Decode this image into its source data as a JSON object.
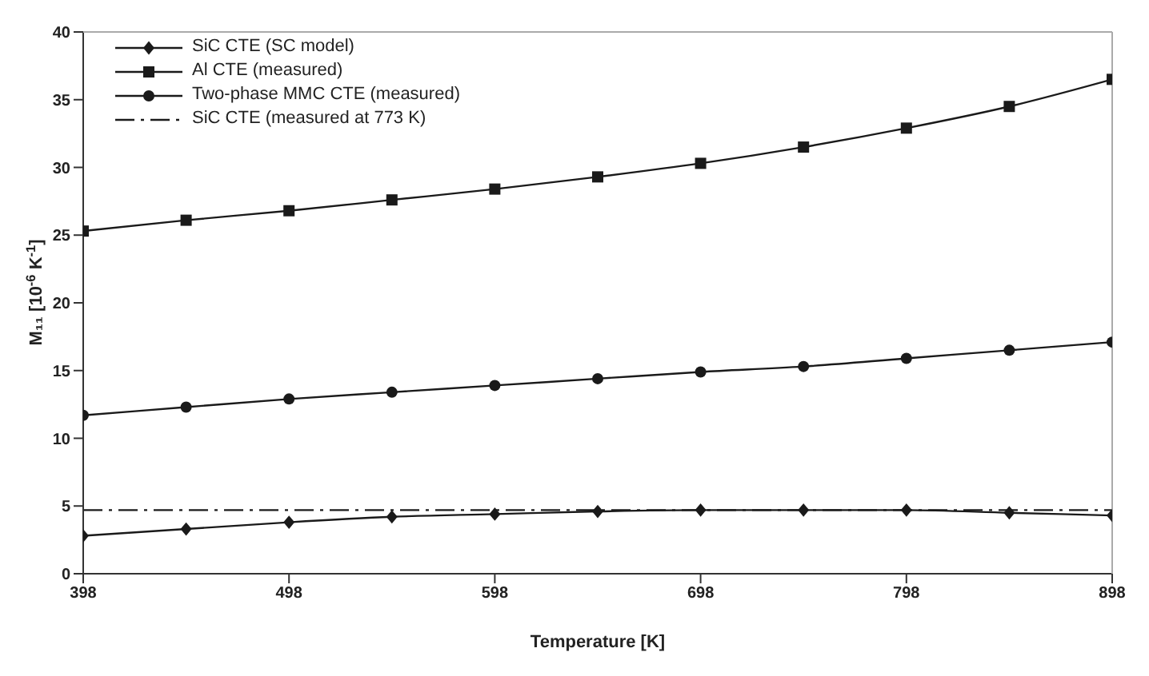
{
  "chart_data": {
    "type": "line",
    "xlabel": "Temperature [K]",
    "ylabel": "M₁₁ [10$^{-6}$ K$^{-1}$]",
    "x": [
      398,
      448,
      498,
      548,
      598,
      648,
      698,
      748,
      798,
      848,
      898
    ],
    "xlim": [
      398,
      898
    ],
    "xticks": [
      398,
      498,
      598,
      698,
      798,
      898
    ],
    "ylim": [
      0,
      40
    ],
    "yticks": [
      0,
      5,
      10,
      15,
      20,
      25,
      30,
      35,
      40
    ],
    "grid": false,
    "legend": "top left",
    "series": [
      {
        "name": "SiC CTE (SC model)",
        "color": "#1a1a1a",
        "marker": "diamond",
        "line_style": "solid",
        "values": [
          2.8,
          3.3,
          3.8,
          4.2,
          4.4,
          4.6,
          4.7,
          4.7,
          4.7,
          4.5,
          4.3
        ]
      },
      {
        "name": "Al CTE (measured)",
        "color": "#1a1a1a",
        "marker": "square",
        "line_style": "solid",
        "values": [
          25.3,
          26.1,
          26.8,
          27.6,
          28.4,
          29.3,
          30.3,
          31.5,
          32.9,
          34.5,
          36.5
        ]
      },
      {
        "name": "Two-phase MMC CTE (measured)",
        "color": "#1a1a1a",
        "marker": "circle",
        "line_style": "solid",
        "values": [
          11.7,
          12.3,
          12.9,
          13.4,
          13.9,
          14.4,
          14.9,
          15.3,
          15.9,
          16.5,
          17.1
        ]
      },
      {
        "name": "SiC CTE (measured at 773 K)",
        "color": "#1a1a1a",
        "marker": "none",
        "line_style": "dashed",
        "values": [
          4.7,
          4.7,
          4.7,
          4.7,
          4.7,
          4.7,
          4.7,
          4.7,
          4.7,
          4.7,
          4.7
        ]
      }
    ]
  }
}
